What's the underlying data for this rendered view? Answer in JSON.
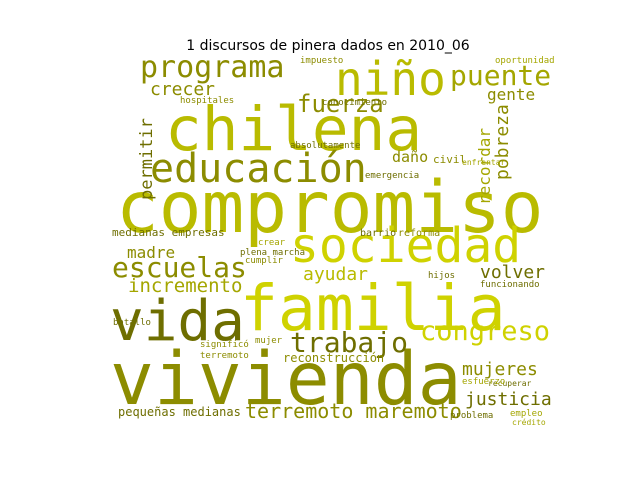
{
  "chart_data": {
    "type": "wordcloud",
    "title": "1 discursos de pinera dados en 2010_06",
    "words": [
      "compromiso",
      "vivienda",
      "familia",
      "chilena",
      "sociedad",
      "vida",
      "educación",
      "niño",
      "programa",
      "puente",
      "escuelas",
      "trabajo",
      "congreso",
      "fuerza",
      "incremento",
      "ayudar",
      "volver",
      "mujeres",
      "justicia",
      "terremoto maremoto",
      "pequeñas medianas",
      "crecer",
      "permitir",
      "recordar",
      "pobreza",
      "gente",
      "madre",
      "daño",
      "reconstrucción",
      "funcionando",
      "reforma",
      "barrio",
      "civil",
      "medianas empresas",
      "absolutamente",
      "conocimiento",
      "impuesto",
      "oportunidad",
      "batallo",
      "hospitales",
      "significó",
      "plena marcha",
      "cumplir",
      "crear",
      "problema",
      "crédito",
      "empleo",
      "emergencia",
      "enfrentar",
      "terremoto",
      "mujer",
      "hijos",
      "recuperar",
      "esfuerzo"
    ],
    "colors": [
      "#b9bb00",
      "#8c8c00",
      "#cfd200",
      "#6e6e00",
      "#a4a600"
    ]
  }
}
